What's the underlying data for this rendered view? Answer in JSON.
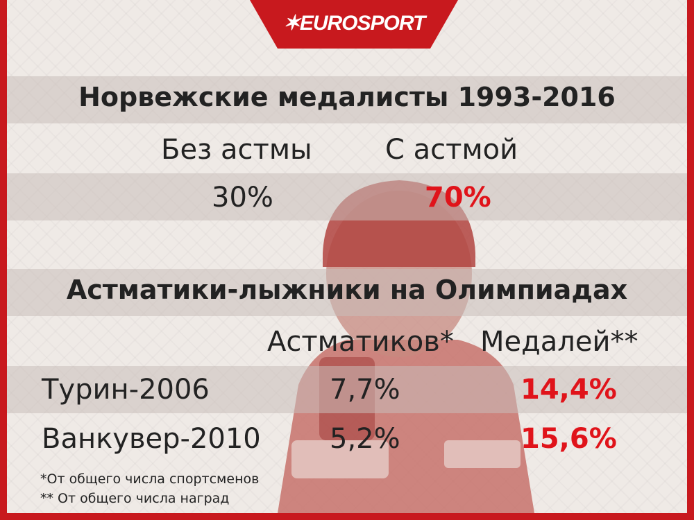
{
  "brand": {
    "logo_text": "EUROSPORT",
    "accent_color": "#c8191e",
    "highlight_color": "#e0131a"
  },
  "section1": {
    "title": "Норвежские медалисты 1993-2016",
    "col_without": "Без астмы",
    "col_with": "С астмой",
    "value_without": "30%",
    "value_with": "70%"
  },
  "section2": {
    "title": "Астматики-лыжники на Олимпиадах",
    "col_asthmatics": "Астматиков*",
    "col_medals": "Медалей**",
    "rows": [
      {
        "games": "Турин-2006",
        "asthmatics": "7,7%",
        "medals": "14,4%"
      },
      {
        "games": "Ванкувер-2010",
        "asthmatics": "5,2%",
        "medals": "15,6%"
      }
    ]
  },
  "footnotes": [
    "*От общего числа спортсменов",
    "** От общего числа наград"
  ]
}
